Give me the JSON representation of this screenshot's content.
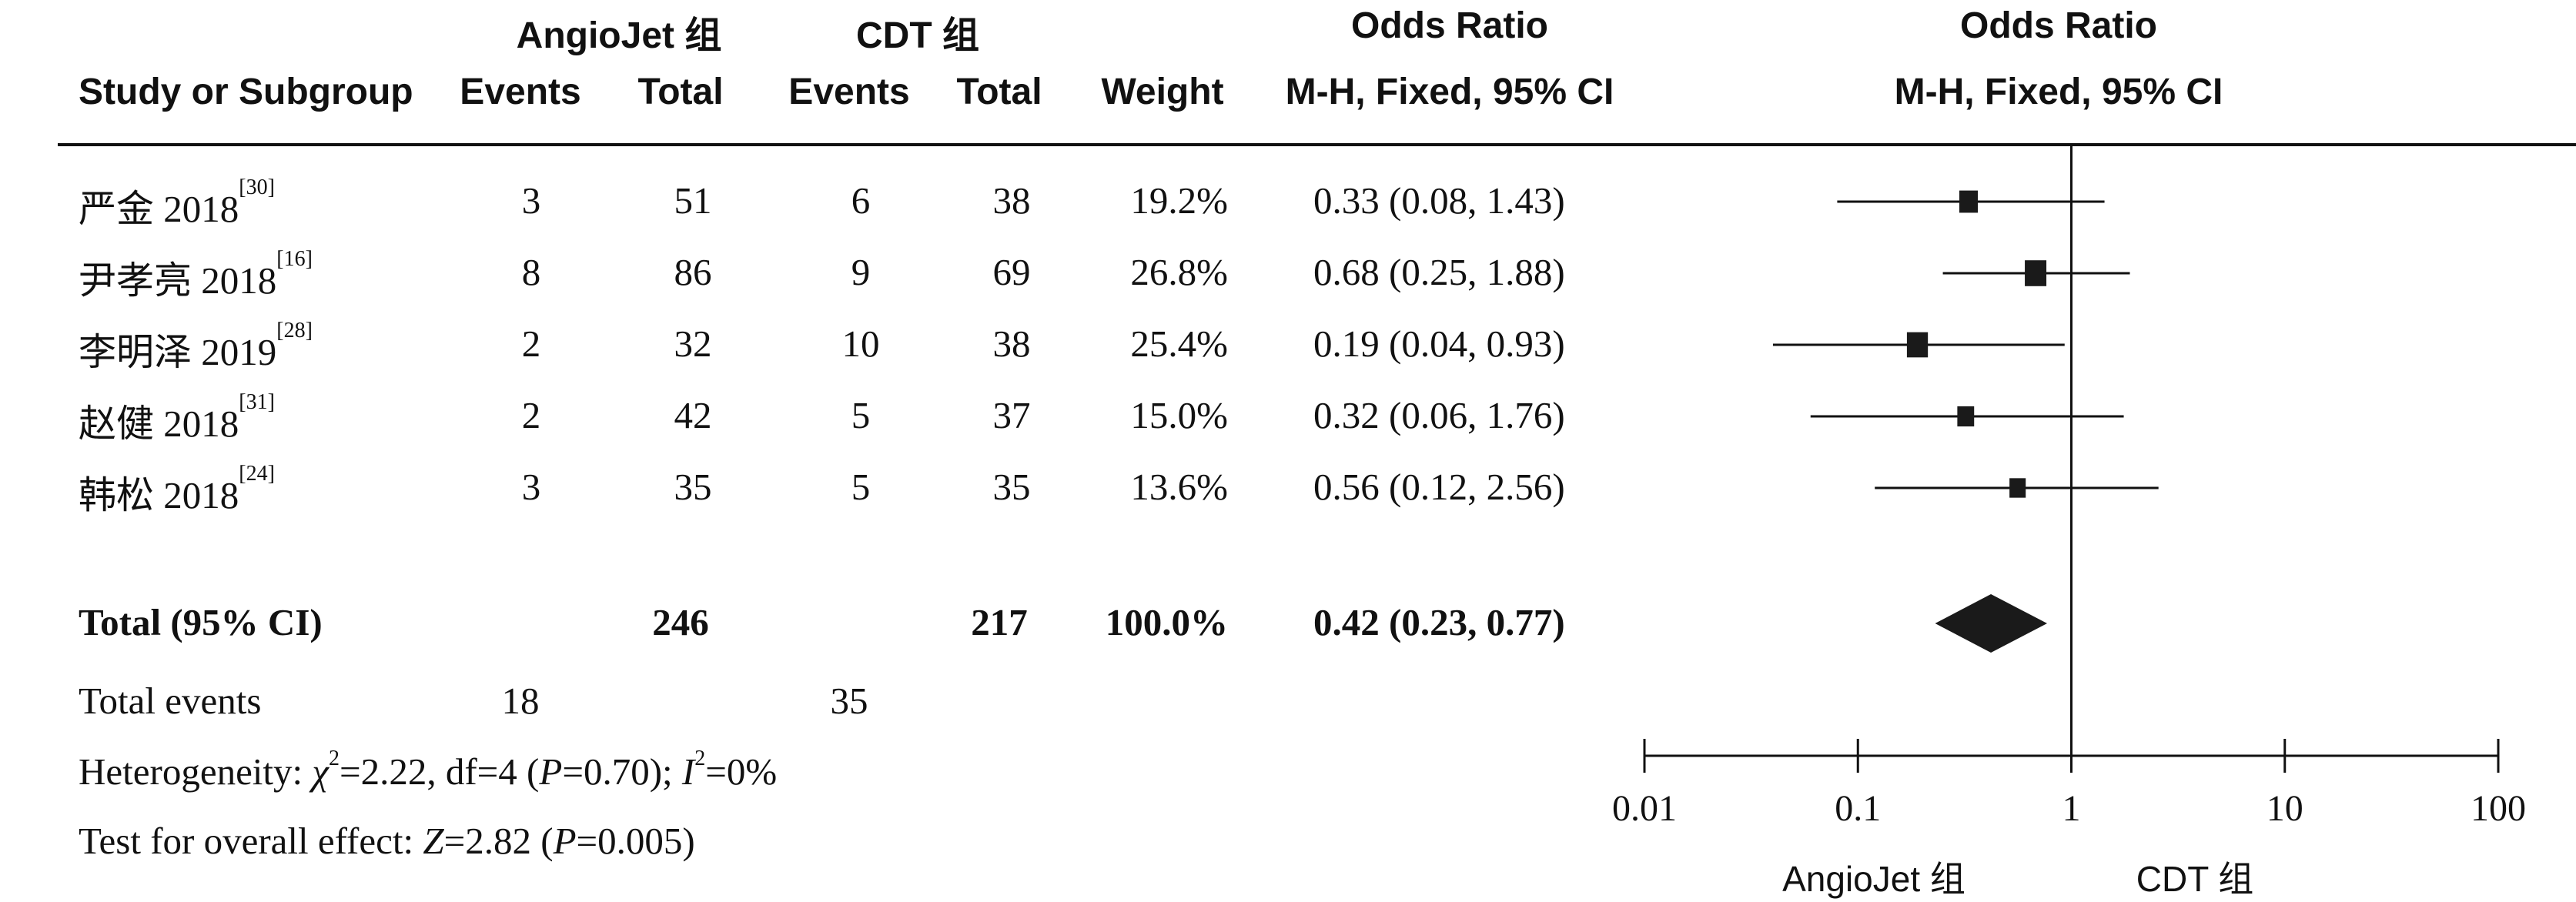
{
  "header": {
    "group1": "AngioJet 组",
    "group2": "CDT 组",
    "or_table_title": "Odds Ratio",
    "or_table_method": "M-H, Fixed, 95% CI",
    "or_plot_title": "Odds Ratio",
    "or_plot_method": "M-H, Fixed, 95% CI",
    "col_study": "Study or Subgroup",
    "col_events1": "Events",
    "col_total1": "Total",
    "col_events2": "Events",
    "col_total2": "Total",
    "col_weight": "Weight"
  },
  "studies": [
    {
      "name": "严金 2018",
      "ref": "[30]",
      "events1": "3",
      "total1": "51",
      "events2": "6",
      "total2": "38",
      "weight": "19.2%",
      "or_text": "0.33 (0.08, 1.43)"
    },
    {
      "name": "尹孝亮 2018",
      "ref": "[16]",
      "events1": "8",
      "total1": "86",
      "events2": "9",
      "total2": "69",
      "weight": "26.8%",
      "or_text": "0.68 (0.25, 1.88)"
    },
    {
      "name": "李明泽 2019",
      "ref": "[28]",
      "events1": "2",
      "total1": "32",
      "events2": "10",
      "total2": "38",
      "weight": "25.4%",
      "or_text": "0.19 (0.04, 0.93)"
    },
    {
      "name": "赵健 2018",
      "ref": "[31]",
      "events1": "2",
      "total1": "42",
      "events2": "5",
      "total2": "37",
      "weight": "15.0%",
      "or_text": "0.32 (0.06, 1.76)"
    },
    {
      "name": "韩松 2018",
      "ref": "[24]",
      "events1": "3",
      "total1": "35",
      "events2": "5",
      "total2": "35",
      "weight": "13.6%",
      "or_text": "0.56 (0.12, 2.56)"
    }
  ],
  "total": {
    "label": "Total (95% CI)",
    "total1": "246",
    "total2": "217",
    "weight": "100.0%",
    "or_text": "0.42 (0.23, 0.77)"
  },
  "footer": {
    "events_label": "Total events",
    "events1": "18",
    "events2": "35",
    "heterogeneity_prefix": "Heterogeneity: ",
    "chi_symbol": "χ",
    "heterogeneity_chi": "=2.22, df=4 (",
    "p_symbol": "P",
    "heterogeneity_p": "=0.70); ",
    "i_symbol": "I",
    "heterogeneity_i": "=0%",
    "overall_prefix": "Test for overall effect: ",
    "z_symbol": "Z",
    "overall_z": "=2.82 (",
    "overall_p": "=0.005)"
  },
  "axis_labels": {
    "left": "AngioJet 组",
    "right": "CDT 组"
  },
  "chart_data": {
    "type": "forest",
    "scale": "log",
    "xlim": [
      0.01,
      100
    ],
    "x_ticks": [
      0.01,
      0.1,
      1,
      10,
      100
    ],
    "x_tick_labels": [
      "0.01",
      "0.1",
      "1",
      "10",
      "100"
    ],
    "reference_line": 1,
    "studies": [
      {
        "name": "严金 2018",
        "or": 0.33,
        "lower": 0.08,
        "upper": 1.43,
        "weight": 19.2
      },
      {
        "name": "尹孝亮 2018",
        "or": 0.68,
        "lower": 0.25,
        "upper": 1.88,
        "weight": 26.8
      },
      {
        "name": "李明泽 2019",
        "or": 0.19,
        "lower": 0.04,
        "upper": 0.93,
        "weight": 25.4
      },
      {
        "name": "赵健 2018",
        "or": 0.32,
        "lower": 0.06,
        "upper": 1.76,
        "weight": 15.0
      },
      {
        "name": "韩松 2018",
        "or": 0.56,
        "lower": 0.12,
        "upper": 2.56,
        "weight": 13.6
      }
    ],
    "pooled": {
      "or": 0.42,
      "lower": 0.23,
      "upper": 0.77
    }
  }
}
